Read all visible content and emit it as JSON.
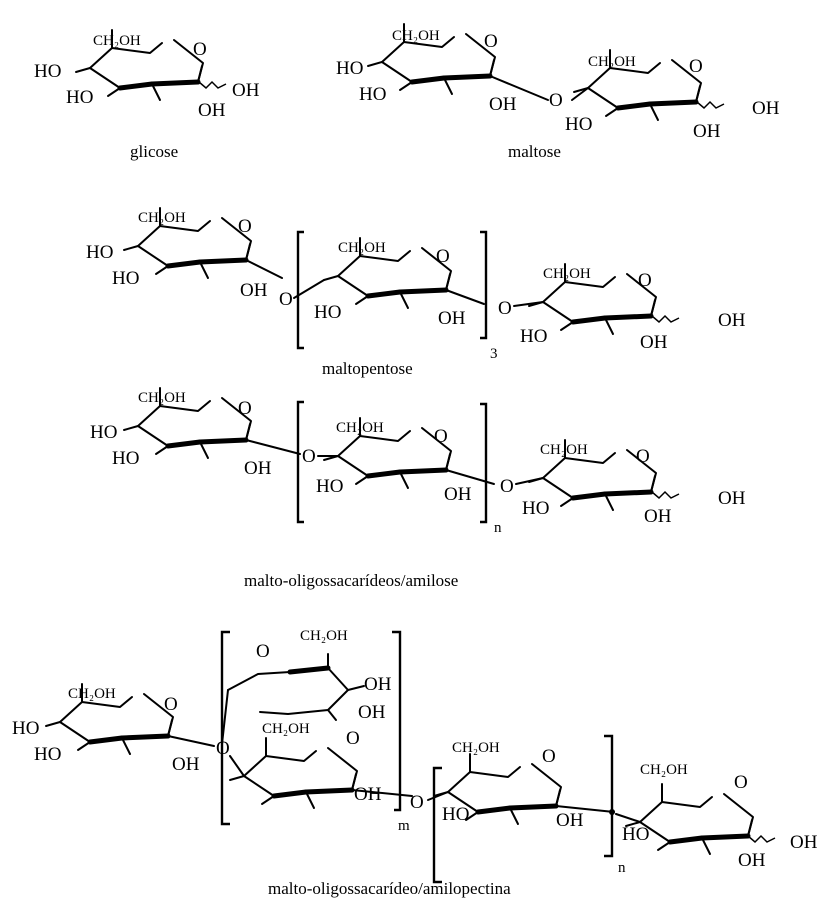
{
  "atoms": {
    "ring_o": "O",
    "ch2oh": "CH₂OH",
    "ho": "HO",
    "oh": "OH",
    "link_o": "O"
  },
  "structures": [
    {
      "id": "glucose",
      "caption": "glicose"
    },
    {
      "id": "maltose",
      "caption": "maltose"
    },
    {
      "id": "maltopentose",
      "caption": "maltopentose",
      "repeat_subscript": "3"
    },
    {
      "id": "amylose",
      "caption": "malto-oligossacarídeos/amilose",
      "repeat_subscript": "n"
    },
    {
      "id": "amylopectin",
      "caption": "malto-oligossacarídeo/amilopectina",
      "repeat_subscripts": [
        "m",
        "n"
      ]
    }
  ]
}
